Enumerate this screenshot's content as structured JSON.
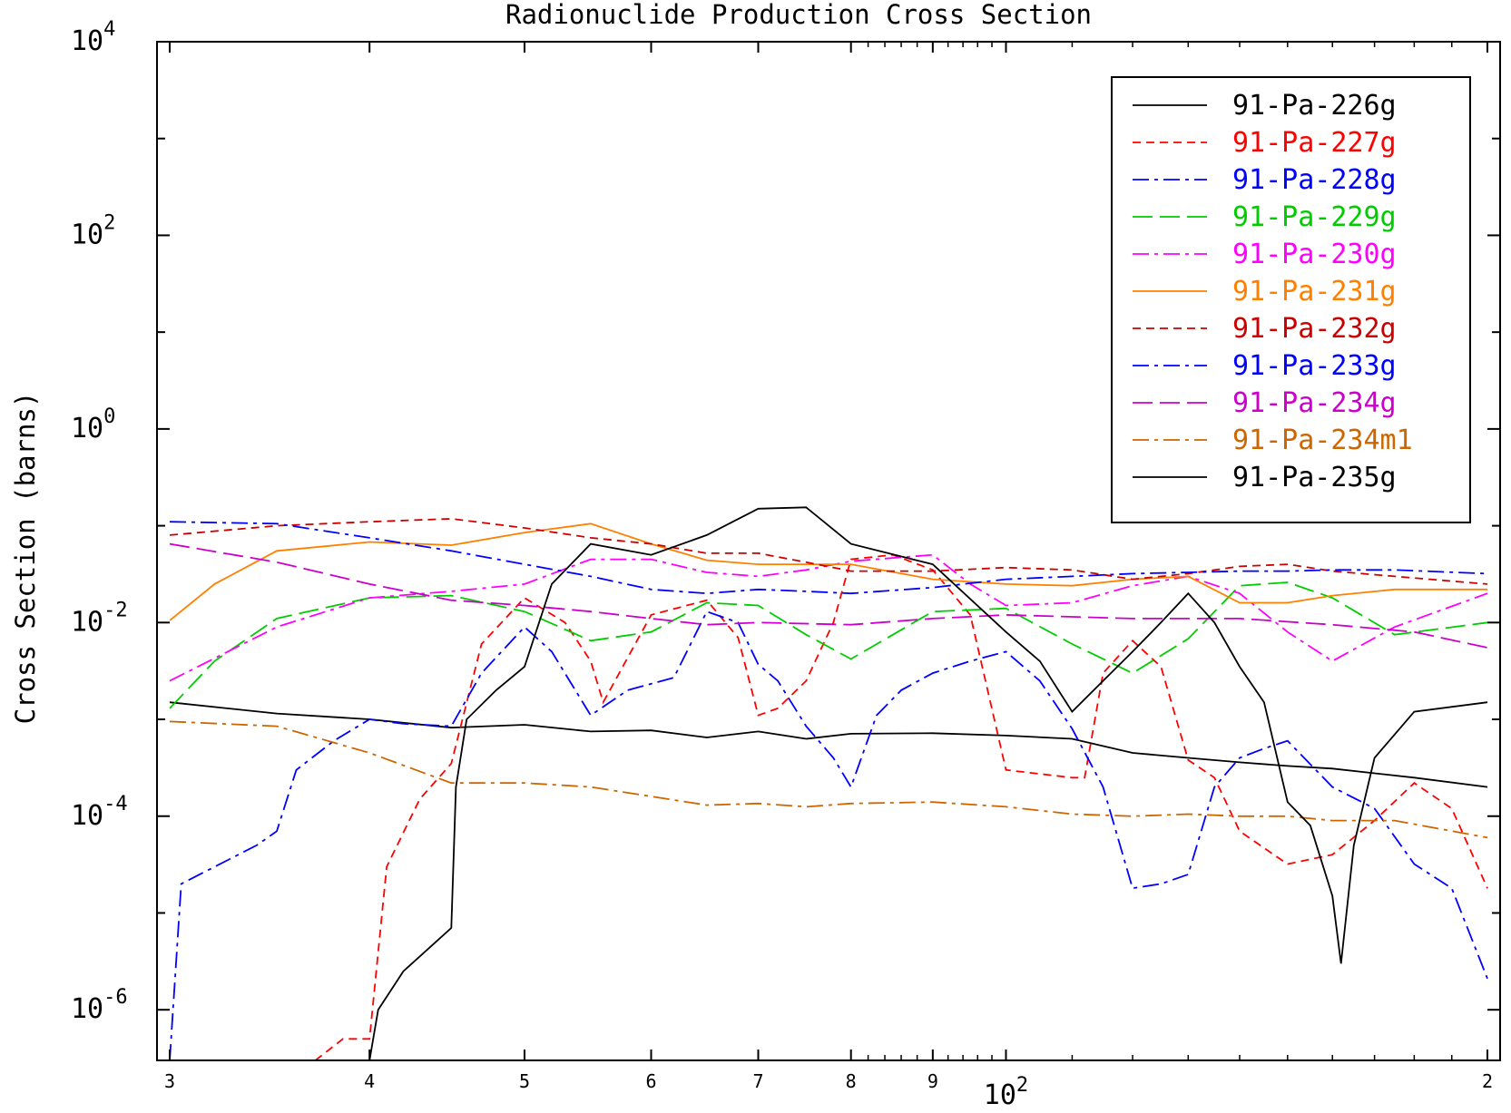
{
  "chart_data": {
    "type": "line",
    "title": "Radionuclide Production Cross Section",
    "xlabel": "",
    "ylabel": "Cross Section (barns)",
    "x_scale": "log",
    "y_scale": "log",
    "xlim": [
      30,
      200
    ],
    "ylim": [
      3e-07,
      10000
    ],
    "x_ticks": [
      {
        "value": 30,
        "label": "3"
      },
      {
        "value": 40,
        "label": "4"
      },
      {
        "value": 50,
        "label": "5"
      },
      {
        "value": 60,
        "label": "6"
      },
      {
        "value": 70,
        "label": "7"
      },
      {
        "value": 80,
        "label": "8"
      },
      {
        "value": 90,
        "label": "9"
      },
      {
        "value": 100,
        "label": "10",
        "superscript": "2"
      },
      {
        "value": 200,
        "label": "2"
      }
    ],
    "y_ticks": [
      {
        "value": 10000,
        "base": "10",
        "exp": "4"
      },
      {
        "value": 100,
        "base": "10",
        "exp": "2"
      },
      {
        "value": 1,
        "base": "10",
        "exp": "0"
      },
      {
        "value": 0.01,
        "base": "10",
        "exp": "-2"
      },
      {
        "value": 0.0001,
        "base": "10",
        "exp": "-4"
      },
      {
        "value": 1e-06,
        "base": "10",
        "exp": "-6"
      }
    ],
    "grid": false,
    "legend_position": "top-right",
    "series": [
      {
        "name": "91-Pa-226g",
        "color": "#000000",
        "dash": "solid",
        "x": [
          30,
          35,
          40,
          45,
          50,
          55,
          60,
          65,
          70,
          75,
          80,
          90,
          100,
          110,
          120,
          130,
          140,
          150,
          160,
          180,
          200
        ],
        "y": [
          0.0015,
          0.00115,
          0.001,
          0.00082,
          0.00088,
          0.00075,
          0.00077,
          0.00065,
          0.00075,
          0.00063,
          0.00071,
          0.00072,
          0.00068,
          0.00063,
          0.00045,
          0.0004,
          0.00036,
          0.00033,
          0.00031,
          0.00025,
          0.0002
        ]
      },
      {
        "name": "91-Pa-227g",
        "color": "#ff0000",
        "dash": "dashed",
        "x": [
          37,
          38.5,
          40,
          41,
          43,
          45,
          47,
          50,
          53,
          55,
          56,
          60,
          65,
          68,
          70,
          72,
          75,
          78,
          80,
          85,
          90,
          95,
          100,
          110,
          112,
          115,
          120,
          125,
          130,
          135,
          140,
          150,
          160,
          170,
          180,
          190,
          200
        ],
        "y": [
          3e-07,
          5e-07,
          5e-07,
          3e-05,
          0.00015,
          0.00035,
          0.006,
          0.018,
          0.01,
          0.004,
          0.0015,
          0.012,
          0.017,
          0.007,
          0.0011,
          0.0013,
          0.0025,
          0.01,
          0.045,
          0.05,
          0.035,
          0.012,
          0.0003,
          0.00025,
          0.00025,
          0.003,
          0.0065,
          0.0035,
          0.00038,
          0.00025,
          7e-05,
          3.2e-05,
          4e-05,
          9e-05,
          0.00022,
          0.00012,
          1.8e-05
        ]
      },
      {
        "name": "91-Pa-228g",
        "color": "#0000ff",
        "dash": "dashdot",
        "x": [
          30,
          30.5,
          32,
          34,
          35,
          36,
          38,
          40,
          42,
          45,
          47,
          50,
          52,
          55,
          58,
          62,
          65,
          68,
          70,
          72,
          75,
          78,
          80,
          83,
          86,
          90,
          95,
          100,
          105,
          110,
          115,
          120,
          125,
          130,
          135,
          140,
          145,
          150,
          160,
          170,
          180,
          190,
          200
        ],
        "y": [
          3e-07,
          2e-05,
          3e-05,
          5e-05,
          7e-05,
          0.0003,
          0.0006,
          0.001,
          0.0009,
          0.00085,
          0.003,
          0.009,
          0.005,
          0.0011,
          0.002,
          0.0027,
          0.013,
          0.01,
          0.0037,
          0.0025,
          0.00085,
          0.0004,
          0.0002,
          0.0011,
          0.002,
          0.003,
          0.004,
          0.005,
          0.0025,
          0.0008,
          0.0002,
          1.8e-05,
          2e-05,
          2.5e-05,
          0.0002,
          0.0004,
          0.0005,
          0.0006,
          0.0002,
          0.00012,
          3.2e-05,
          1.8e-05,
          2.1e-06
        ]
      },
      {
        "name": "91-Pa-229g",
        "color": "#00cc00",
        "dash": "longdash",
        "x": [
          30,
          32,
          35,
          40,
          45,
          50,
          55,
          60,
          65,
          70,
          75,
          80,
          90,
          100,
          110,
          120,
          130,
          140,
          150,
          160,
          175,
          200
        ],
        "y": [
          0.0013,
          0.004,
          0.011,
          0.018,
          0.019,
          0.013,
          0.0065,
          0.008,
          0.016,
          0.015,
          0.0075,
          0.0042,
          0.013,
          0.014,
          0.006,
          0.003,
          0.0068,
          0.024,
          0.026,
          0.018,
          0.0075,
          0.01
        ]
      },
      {
        "name": "91-Pa-230g",
        "color": "#ff00ff",
        "dash": "dashdot",
        "x": [
          30,
          35,
          40,
          45,
          50,
          55,
          60,
          65,
          70,
          75,
          80,
          90,
          95,
          100,
          110,
          120,
          130,
          140,
          150,
          160,
          175,
          200
        ],
        "y": [
          0.0025,
          0.009,
          0.018,
          0.021,
          0.025,
          0.045,
          0.045,
          0.033,
          0.03,
          0.035,
          0.043,
          0.05,
          0.025,
          0.015,
          0.016,
          0.024,
          0.03,
          0.02,
          0.008,
          0.004,
          0.009,
          0.02
        ]
      },
      {
        "name": "91-Pa-231g",
        "color": "#ff8000",
        "dash": "solid",
        "x": [
          30,
          32,
          35,
          40,
          45,
          50,
          55,
          60,
          65,
          70,
          75,
          80,
          90,
          100,
          110,
          120,
          130,
          140,
          150,
          160,
          175,
          200
        ],
        "y": [
          0.0105,
          0.025,
          0.055,
          0.068,
          0.063,
          0.085,
          0.105,
          0.065,
          0.044,
          0.04,
          0.04,
          0.04,
          0.028,
          0.025,
          0.024,
          0.028,
          0.03,
          0.016,
          0.016,
          0.019,
          0.022,
          0.022
        ]
      },
      {
        "name": "91-Pa-232g",
        "color": "#cc0000",
        "dash": "dashed",
        "x": [
          30,
          35,
          40,
          45,
          50,
          55,
          60,
          65,
          70,
          75,
          80,
          90,
          100,
          110,
          120,
          130,
          140,
          150,
          160,
          175,
          200
        ],
        "y": [
          0.08,
          0.1,
          0.11,
          0.118,
          0.095,
          0.075,
          0.065,
          0.052,
          0.052,
          0.042,
          0.034,
          0.034,
          0.037,
          0.035,
          0.028,
          0.032,
          0.038,
          0.04,
          0.034,
          0.03,
          0.025
        ]
      },
      {
        "name": "91-Pa-233g",
        "color": "#0000ff",
        "dash": "dashdot",
        "x": [
          30,
          35,
          40,
          45,
          50,
          55,
          60,
          65,
          70,
          75,
          80,
          90,
          100,
          110,
          120,
          130,
          140,
          150,
          160,
          175,
          200
        ],
        "y": [
          0.11,
          0.105,
          0.075,
          0.055,
          0.04,
          0.03,
          0.022,
          0.02,
          0.022,
          0.021,
          0.02,
          0.023,
          0.028,
          0.03,
          0.032,
          0.033,
          0.034,
          0.034,
          0.035,
          0.035,
          0.032
        ]
      },
      {
        "name": "91-Pa-234g",
        "color": "#cc00cc",
        "dash": "longdash",
        "x": [
          30,
          35,
          40,
          45,
          50,
          55,
          60,
          65,
          70,
          80,
          90,
          100,
          120,
          140,
          160,
          180,
          200
        ],
        "y": [
          0.065,
          0.042,
          0.025,
          0.017,
          0.015,
          0.013,
          0.011,
          0.0095,
          0.01,
          0.0095,
          0.011,
          0.012,
          0.011,
          0.011,
          0.0095,
          0.008,
          0.0055
        ]
      },
      {
        "name": "91-Pa-234m1",
        "color": "#cc6600",
        "dash": "dashdot",
        "x": [
          30,
          35,
          40,
          45,
          50,
          55,
          60,
          65,
          70,
          75,
          80,
          90,
          100,
          110,
          120,
          130,
          140,
          150,
          160,
          175,
          200
        ],
        "y": [
          0.00095,
          0.00085,
          0.00045,
          0.00022,
          0.00022,
          0.0002,
          0.00016,
          0.00013,
          0.000135,
          0.000125,
          0.000135,
          0.00014,
          0.000125,
          0.000105,
          0.0001,
          0.000105,
          0.0001,
          0.0001,
          9e-05,
          9e-05,
          6e-05
        ]
      },
      {
        "name": "91-Pa-235g",
        "color": "#000000",
        "dash": "solid",
        "x": [
          40,
          40.5,
          42,
          44,
          45,
          45.3,
          46,
          48,
          50,
          52,
          55,
          60,
          65,
          70,
          75,
          80,
          90,
          100,
          105,
          110,
          115,
          120,
          125,
          130,
          135,
          140,
          145,
          150,
          155,
          160,
          162,
          165,
          170,
          180,
          200
        ],
        "y": [
          3e-07,
          1e-06,
          2.5e-06,
          5e-06,
          7e-06,
          0.0002,
          0.001,
          0.002,
          0.0035,
          0.025,
          0.065,
          0.05,
          0.08,
          0.15,
          0.155,
          0.065,
          0.04,
          0.008,
          0.004,
          0.0012,
          0.0025,
          0.005,
          0.01,
          0.02,
          0.01,
          0.0035,
          0.0015,
          0.00014,
          8e-05,
          1.5e-05,
          3e-06,
          5e-05,
          0.0004,
          0.0012,
          0.0015
        ]
      }
    ]
  }
}
